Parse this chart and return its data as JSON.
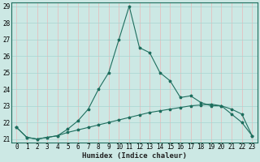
{
  "title": "",
  "xlabel": "Humidex (Indice chaleur)",
  "x": [
    0,
    1,
    2,
    3,
    4,
    5,
    6,
    7,
    8,
    9,
    10,
    11,
    12,
    13,
    14,
    15,
    16,
    17,
    18,
    19,
    20,
    21,
    22,
    23
  ],
  "y_main": [
    21.7,
    21.1,
    21.0,
    21.1,
    21.2,
    21.6,
    22.1,
    22.8,
    24.0,
    25.0,
    27.0,
    29.0,
    26.5,
    26.2,
    25.0,
    24.5,
    23.5,
    23.6,
    23.2,
    23.0,
    23.0,
    22.5,
    22.0,
    21.2
  ],
  "y_secondary": [
    21.7,
    21.1,
    21.0,
    21.1,
    21.2,
    21.4,
    21.55,
    21.7,
    21.85,
    22.0,
    22.15,
    22.3,
    22.45,
    22.6,
    22.7,
    22.8,
    22.9,
    23.0,
    23.05,
    23.1,
    23.0,
    22.8,
    22.5,
    21.2
  ],
  "ylim_min": 21,
  "ylim_max": 29,
  "xlim_min": -0.5,
  "xlim_max": 23.5,
  "yticks": [
    21,
    22,
    23,
    24,
    25,
    26,
    27,
    28,
    29
  ],
  "xticks": [
    0,
    1,
    2,
    3,
    4,
    5,
    6,
    7,
    8,
    9,
    10,
    11,
    12,
    13,
    14,
    15,
    16,
    17,
    18,
    19,
    20,
    21,
    22,
    23
  ],
  "line_color": "#1e6e5e",
  "bg_color": "#cce8e4",
  "grid_color_v": "#e8b8b8",
  "grid_color_h": "#a8d4d0",
  "marker": "*",
  "tick_fontsize": 5.5,
  "xlabel_fontsize": 6.5
}
